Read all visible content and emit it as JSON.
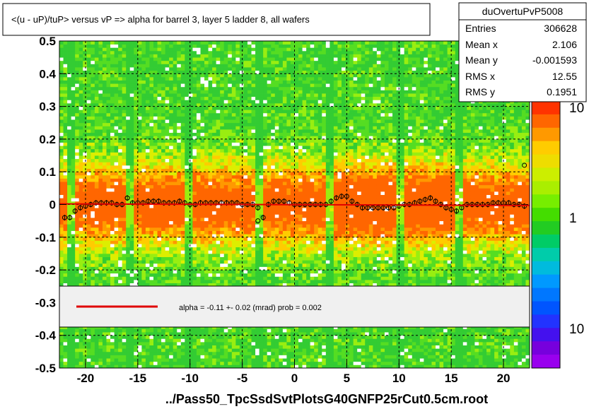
{
  "title": "<(u - uP)/tuP>  versus   vP => alpha for barrel 3, layer 5 ladder 8, all wafers",
  "stats": {
    "name": "duOvertuPvP5008",
    "rows": [
      {
        "label": "Entries",
        "value": "306628"
      },
      {
        "label": "Mean x",
        "value": "2.106"
      },
      {
        "label": "Mean y",
        "value": "-0.001593"
      },
      {
        "label": "RMS x",
        "value": "12.55"
      },
      {
        "label": "RMS y",
        "value": "0.1951"
      }
    ]
  },
  "legend": {
    "text": "alpha =   -0.11 +-  0.02 (mrad) prob = 0.002",
    "line_color": "#e00000"
  },
  "palette": {
    "labels": [
      "10",
      "1",
      "10"
    ]
  },
  "footer": "../Pass50_TpcSsdSvtPlotsG40GNFP25rCut0.5cm.root",
  "chart_data": {
    "type": "heatmap",
    "xlim": [
      -22.5,
      22.5
    ],
    "ylim": [
      -0.5,
      0.5
    ],
    "x_ticks": [
      "-20",
      "-15",
      "-10",
      "-5",
      "0",
      "5",
      "10",
      "15",
      "20"
    ],
    "y_ticks": [
      "-0.5",
      "-0.4",
      "-0.3",
      "-0.2",
      "-0.1",
      "0",
      "0.1",
      "0.2",
      "0.3",
      "0.4",
      "0.5"
    ],
    "grid": true,
    "colors": {
      "low": "#44cc22",
      "mid": "#eeee00",
      "high": "#ff6600"
    },
    "profile": {
      "x": [
        -22,
        -21.5,
        -21,
        -20.5,
        -20,
        -19.5,
        -19,
        -18.5,
        -18,
        -17.5,
        -17,
        -16.5,
        -16,
        -15.5,
        -15,
        -14.5,
        -14,
        -13.5,
        -13,
        -12.5,
        -12,
        -11.5,
        -11,
        -10.5,
        -10,
        -9.5,
        -9,
        -8.5,
        -8,
        -7.5,
        -7,
        -6.5,
        -6,
        -5.5,
        -5,
        -4.5,
        -4,
        -3.5,
        -3,
        -2.5,
        -2,
        -1.5,
        -1,
        -0.5,
        0,
        0.5,
        1,
        1.5,
        2,
        2.5,
        3,
        3.5,
        4,
        4.5,
        5,
        5.5,
        6,
        6.5,
        7,
        7.5,
        8,
        8.5,
        9,
        9.5,
        10,
        10.5,
        11,
        11.5,
        12,
        12.5,
        13,
        13.5,
        14,
        14.5,
        15,
        15.5,
        16,
        16.5,
        17,
        17.5,
        18,
        18.5,
        19,
        19.5,
        20,
        20.5,
        21,
        21.5,
        22
      ],
      "y": [
        -0.04,
        -0.04,
        -0.02,
        -0.01,
        -0.005,
        0,
        0.005,
        0.005,
        0.005,
        0.005,
        0,
        0,
        0.02,
        0.005,
        0.005,
        0.005,
        0.01,
        0.01,
        0.01,
        0.005,
        0.005,
        0.005,
        0.01,
        0.005,
        0,
        0,
        0.005,
        0.005,
        0.005,
        0.005,
        0.005,
        0.005,
        0.005,
        0.005,
        0,
        0,
        0,
        -0.01,
        -0.04,
        0,
        0.01,
        0.01,
        0.01,
        0.005,
        0,
        0,
        0,
        0,
        0,
        0,
        0,
        0.01,
        0.02,
        0.025,
        0.025,
        0.01,
        0,
        -0.01,
        -0.01,
        -0.01,
        -0.01,
        -0.01,
        -0.01,
        -0.01,
        -0.005,
        0,
        0,
        0.005,
        0.01,
        0.015,
        0.02,
        0.01,
        0,
        -0.01,
        -0.015,
        -0.02,
        -0.01,
        0,
        0,
        0,
        0,
        0,
        0.005,
        0.005,
        0.005,
        0.005,
        0,
        0,
        -0.005
      ]
    },
    "outliers": [
      {
        "x": -16,
        "y": 0.02
      },
      {
        "x": -3.5,
        "y": -0.05
      },
      {
        "x": 22,
        "y": 0.12
      }
    ],
    "fit": {
      "x": [
        -22.5,
        22.5
      ],
      "y": [
        0.002,
        -0.003
      ],
      "color": "#e00000"
    }
  }
}
